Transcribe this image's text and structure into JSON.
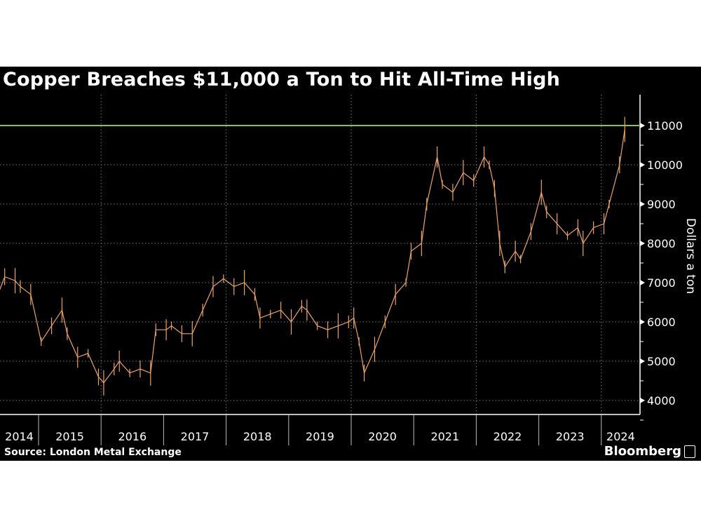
{
  "title": "Copper Breaches $11,000 a Ton to Hit All-Time High",
  "source": "Source: London Metal Exchange",
  "brand": "Bloomberg",
  "colors": {
    "background": "#000000",
    "series": "#e8a468",
    "threshold": "#8cc63f",
    "text": "#ffffff"
  },
  "chart_data": {
    "type": "line",
    "style": "ohlc-bars",
    "ylabel": "Dollars a ton",
    "ylim": [
      3800,
      11600
    ],
    "yticks": [
      4000,
      5000,
      6000,
      7000,
      8000,
      9000,
      10000,
      11000
    ],
    "xticks": [
      "2014",
      "2015",
      "2016",
      "2017",
      "2018",
      "2019",
      "2020",
      "2021",
      "2022",
      "2023",
      "2024"
    ],
    "grid": "dotted",
    "reference_line": {
      "value": 11000
    },
    "series": [
      {
        "points": [
          [
            "2014-05",
            6800
          ],
          [
            "2014-06",
            7150
          ],
          [
            "2014-08",
            7050
          ],
          [
            "2014-09",
            6900
          ],
          [
            "2014-11",
            6700
          ],
          [
            "2015-01",
            5500
          ],
          [
            "2015-03",
            5900
          ],
          [
            "2015-05",
            6300
          ],
          [
            "2015-06",
            5700
          ],
          [
            "2015-08",
            5100
          ],
          [
            "2015-10",
            5200
          ],
          [
            "2015-12",
            4600
          ],
          [
            "2016-01",
            4450
          ],
          [
            "2016-03",
            4800
          ],
          [
            "2016-04",
            5000
          ],
          [
            "2016-06",
            4700
          ],
          [
            "2016-08",
            4800
          ],
          [
            "2016-10",
            4700
          ],
          [
            "2016-11",
            5800
          ],
          [
            "2017-01",
            5800
          ],
          [
            "2017-02",
            5900
          ],
          [
            "2017-04",
            5700
          ],
          [
            "2017-06",
            5700
          ],
          [
            "2017-08",
            6300
          ],
          [
            "2017-10",
            6900
          ],
          [
            "2017-12",
            7100
          ],
          [
            "2018-02",
            6900
          ],
          [
            "2018-04",
            7000
          ],
          [
            "2018-06",
            6700
          ],
          [
            "2018-07",
            6100
          ],
          [
            "2018-09",
            6200
          ],
          [
            "2018-11",
            6300
          ],
          [
            "2019-01",
            6000
          ],
          [
            "2019-03",
            6400
          ],
          [
            "2019-04",
            6300
          ],
          [
            "2019-06",
            5900
          ],
          [
            "2019-08",
            5800
          ],
          [
            "2019-10",
            5900
          ],
          [
            "2019-12",
            6000
          ],
          [
            "2020-01",
            6100
          ],
          [
            "2020-02",
            5500
          ],
          [
            "2020-03",
            4700
          ],
          [
            "2020-05",
            5300
          ],
          [
            "2020-07",
            6000
          ],
          [
            "2020-09",
            6700
          ],
          [
            "2020-11",
            7000
          ],
          [
            "2020-12",
            7800
          ],
          [
            "2021-02",
            8000
          ],
          [
            "2021-03",
            9000
          ],
          [
            "2021-05",
            10200
          ],
          [
            "2021-06",
            9500
          ],
          [
            "2021-08",
            9300
          ],
          [
            "2021-10",
            9800
          ],
          [
            "2021-12",
            9600
          ],
          [
            "2022-02",
            10200
          ],
          [
            "2022-03",
            10000
          ],
          [
            "2022-04",
            9400
          ],
          [
            "2022-05",
            8000
          ],
          [
            "2022-06",
            7400
          ],
          [
            "2022-08",
            7800
          ],
          [
            "2022-09",
            7600
          ],
          [
            "2022-11",
            8300
          ],
          [
            "2023-01",
            9300
          ],
          [
            "2023-02",
            8800
          ],
          [
            "2023-04",
            8500
          ],
          [
            "2023-06",
            8200
          ],
          [
            "2023-08",
            8400
          ],
          [
            "2023-09",
            8000
          ],
          [
            "2023-11",
            8400
          ],
          [
            "2024-01",
            8500
          ],
          [
            "2024-02",
            9000
          ],
          [
            "2024-04",
            10000
          ],
          [
            "2024-05",
            10900
          ]
        ]
      }
    ]
  }
}
